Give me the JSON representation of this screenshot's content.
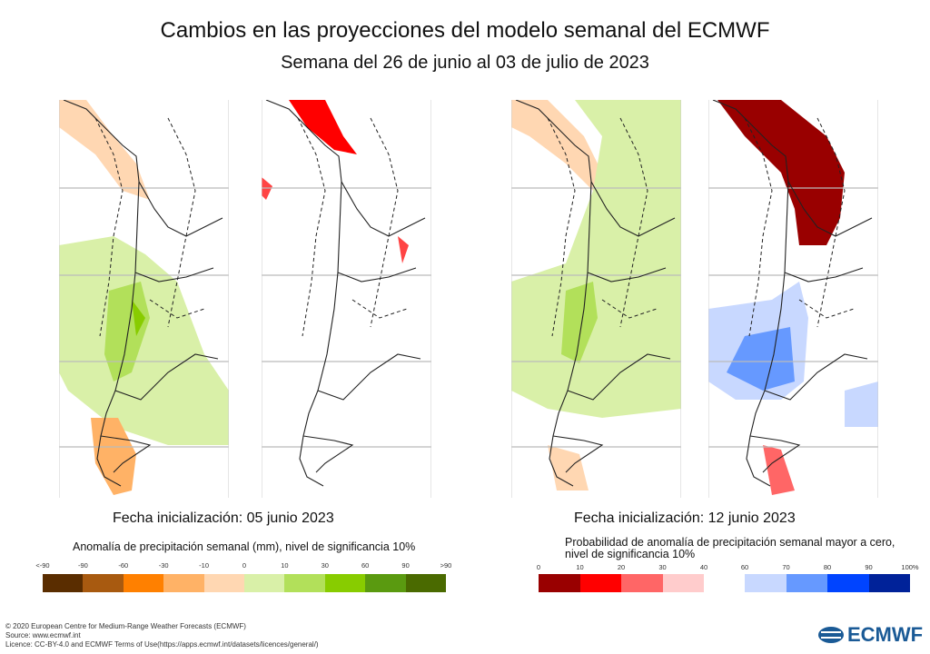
{
  "title": "Cambios en las proyecciones del modelo semanal del ECMWF",
  "subtitle": "Semana del 26 de junio al 03 de julio de 2023",
  "left": {
    "init_label": "Fecha inicialización: 05 junio 2023",
    "legend_title": "Anomalía de precipitación semanal (mm), nivel de significancia 10%",
    "ticks": [
      "<-90",
      "-90",
      "-60",
      "-30",
      "-10",
      "0",
      "10",
      "30",
      "60",
      "90",
      ">90"
    ],
    "colors": [
      "#5a2d00",
      "#a85a10",
      "#ff8000",
      "#ffb266",
      "#ffd7b2",
      "#d9f0a8",
      "#b2e05a",
      "#88cc00",
      "#5a9a10",
      "#4a6a00"
    ]
  },
  "right": {
    "init_label": "Fecha inicialización: 12 junio 2023",
    "legend_title_1": "Probabilidad de anomalía de precipitación semanal mayor a cero,",
    "legend_title_2": "nivel de significancia 10%",
    "ticks_low": [
      "0",
      "10",
      "20",
      "30",
      "40"
    ],
    "colors_low": [
      "#990000",
      "#ff0000",
      "#ff6666",
      "#ffcccc"
    ],
    "ticks_high": [
      "60",
      "70",
      "80",
      "90",
      "100%"
    ],
    "colors_high": [
      "#c8d8ff",
      "#6699ff",
      "#0044ff",
      "#002299"
    ]
  },
  "footer": {
    "line1": "© 2020 European Centre for Medium-Range Weather Forecasts (ECMWF)",
    "line2": "Source: www.ecmwf.int",
    "line3": "Licence: CC-BY-4.0 and ECMWF Terms of Use(https://apps.ecmwf.int/datasets/licences/general/)"
  },
  "logo": "ECMWF"
}
